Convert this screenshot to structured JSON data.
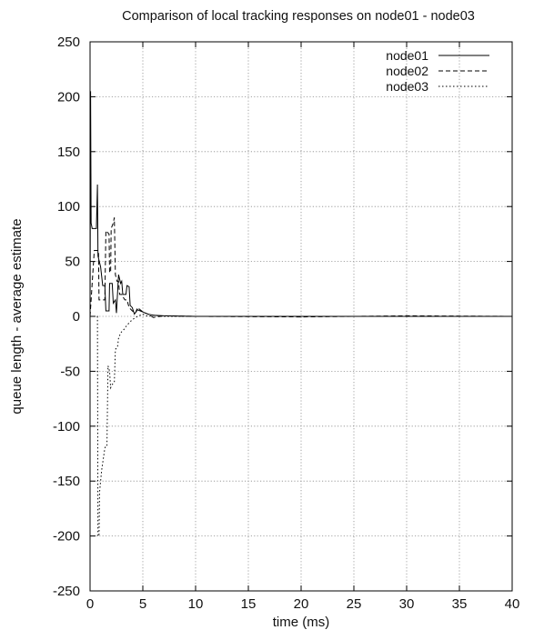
{
  "chart_data": {
    "type": "line",
    "title": "Comparison of local tracking responses on node01 - node03",
    "xlabel": "time (ms)",
    "ylabel": "queue length - average estimate",
    "xlim": [
      0,
      40
    ],
    "ylim": [
      -250,
      250
    ],
    "xticks": [
      0,
      5,
      10,
      15,
      20,
      25,
      30,
      35,
      40
    ],
    "yticks": [
      250,
      200,
      150,
      100,
      50,
      0,
      -50,
      -100,
      -150,
      -200,
      -250
    ],
    "grid": true,
    "legend_position": "top-right",
    "series": [
      {
        "name": "node01",
        "style": "solid",
        "color": "#000000",
        "points": [
          [
            0,
            0
          ],
          [
            0.05,
            205
          ],
          [
            0.1,
            85
          ],
          [
            0.2,
            80
          ],
          [
            0.6,
            80
          ],
          [
            0.7,
            120
          ],
          [
            0.75,
            55
          ],
          [
            1.0,
            45
          ],
          [
            1.2,
            28
          ],
          [
            1.4,
            28
          ],
          [
            1.5,
            5
          ],
          [
            1.8,
            5
          ],
          [
            1.85,
            30
          ],
          [
            2.1,
            30
          ],
          [
            2.2,
            12
          ],
          [
            2.4,
            15
          ],
          [
            2.5,
            3
          ],
          [
            2.7,
            38
          ],
          [
            2.9,
            30
          ],
          [
            3.0,
            32
          ],
          [
            3.1,
            20
          ],
          [
            3.4,
            20
          ],
          [
            3.5,
            28
          ],
          [
            3.7,
            27
          ],
          [
            3.8,
            10
          ],
          [
            4.0,
            8
          ],
          [
            4.2,
            2
          ],
          [
            4.5,
            6
          ],
          [
            5.0,
            4
          ],
          [
            5.5,
            2
          ],
          [
            6.0,
            1
          ],
          [
            7.0,
            0.5
          ],
          [
            10.0,
            0
          ],
          [
            20.0,
            0
          ],
          [
            30.0,
            0
          ],
          [
            40.0,
            0
          ]
        ]
      },
      {
        "name": "node02",
        "style": "dashed",
        "color": "#000000",
        "points": [
          [
            0,
            0
          ],
          [
            0.4,
            60
          ],
          [
            0.8,
            60
          ],
          [
            0.85,
            15
          ],
          [
            1.4,
            15
          ],
          [
            1.5,
            78
          ],
          [
            1.8,
            75
          ],
          [
            1.85,
            40
          ],
          [
            1.95,
            40
          ],
          [
            2.0,
            80
          ],
          [
            2.2,
            85
          ],
          [
            2.3,
            90
          ],
          [
            2.4,
            38
          ],
          [
            2.55,
            32
          ],
          [
            2.7,
            32
          ],
          [
            2.8,
            20
          ],
          [
            3.0,
            20
          ],
          [
            3.1,
            18
          ],
          [
            3.3,
            15
          ],
          [
            3.5,
            15
          ],
          [
            3.7,
            8
          ],
          [
            4.0,
            5
          ],
          [
            4.3,
            3
          ],
          [
            4.5,
            8
          ],
          [
            5.0,
            4
          ],
          [
            5.5,
            2
          ],
          [
            6.0,
            -1
          ],
          [
            7.0,
            0.5
          ],
          [
            10.0,
            0
          ],
          [
            20.0,
            -0.5
          ],
          [
            30.0,
            0.5
          ],
          [
            40.0,
            0
          ]
        ]
      },
      {
        "name": "node03",
        "style": "dotted",
        "color": "#000000",
        "points": [
          [
            0,
            0
          ],
          [
            0.7,
            0
          ],
          [
            0.75,
            -200
          ],
          [
            0.85,
            -200
          ],
          [
            0.9,
            -160
          ],
          [
            1.1,
            -140
          ],
          [
            1.4,
            -120
          ],
          [
            1.5,
            -118
          ],
          [
            1.6,
            -118
          ],
          [
            1.7,
            -45
          ],
          [
            1.85,
            -50
          ],
          [
            1.95,
            -65
          ],
          [
            2.1,
            -62
          ],
          [
            2.3,
            -60
          ],
          [
            2.4,
            -30
          ],
          [
            2.6,
            -28
          ],
          [
            2.7,
            -20
          ],
          [
            2.9,
            -15
          ],
          [
            3.2,
            -12
          ],
          [
            3.5,
            -8
          ],
          [
            4.0,
            -3
          ],
          [
            4.5,
            0
          ],
          [
            5.0,
            2
          ],
          [
            5.5,
            0
          ],
          [
            6.0,
            1
          ],
          [
            7.0,
            0
          ],
          [
            10.0,
            0
          ],
          [
            20.0,
            0
          ],
          [
            30.0,
            0
          ],
          [
            40.0,
            0
          ]
        ]
      }
    ]
  }
}
